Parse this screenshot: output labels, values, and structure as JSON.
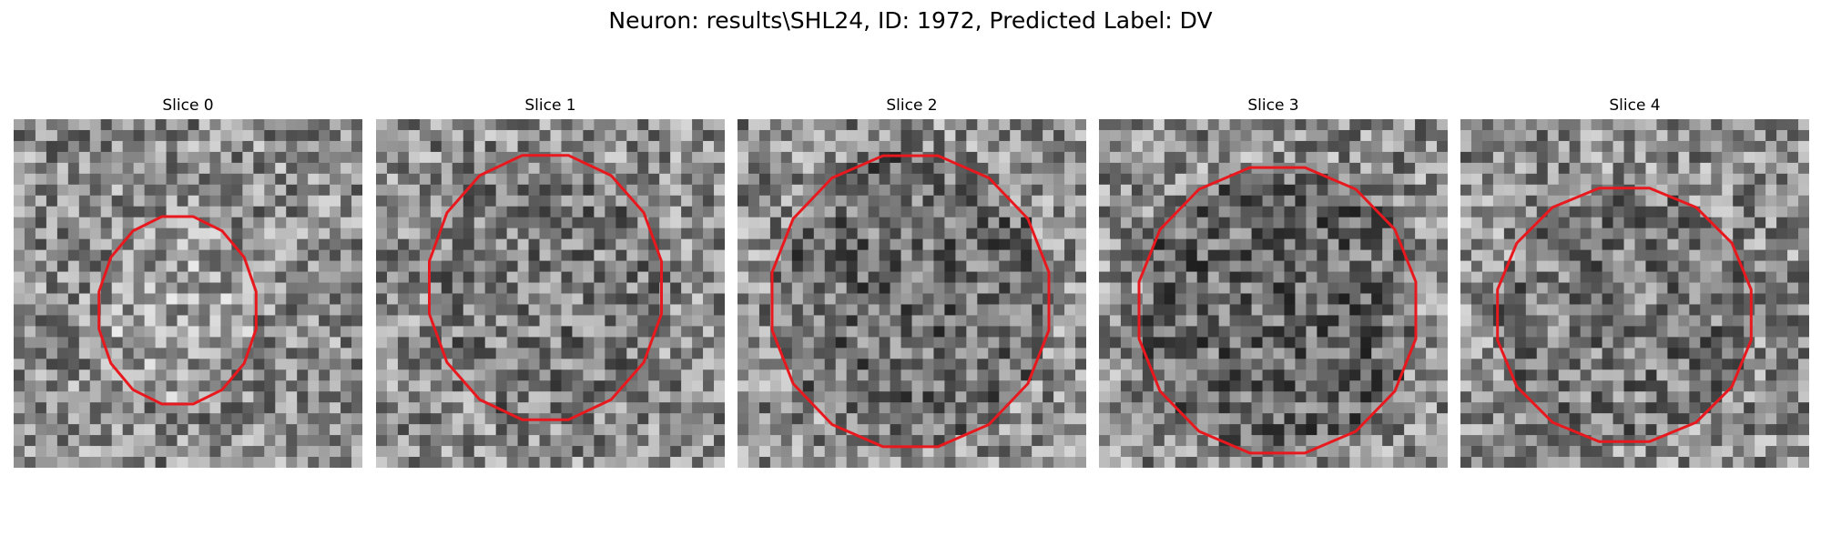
{
  "figure": {
    "title": "Neuron: results\\SHL24, ID: 1972, Predicted Label: DV"
  },
  "slices": [
    {
      "label": "Slice 0",
      "contour_color": "#e8191e"
    },
    {
      "label": "Slice 1",
      "contour_color": "#e8191e"
    },
    {
      "label": "Slice 2",
      "contour_color": "#e8191e"
    },
    {
      "label": "Slice 3",
      "contour_color": "#e8191e"
    },
    {
      "label": "Slice 4",
      "contour_color": "#e8191e"
    }
  ]
}
